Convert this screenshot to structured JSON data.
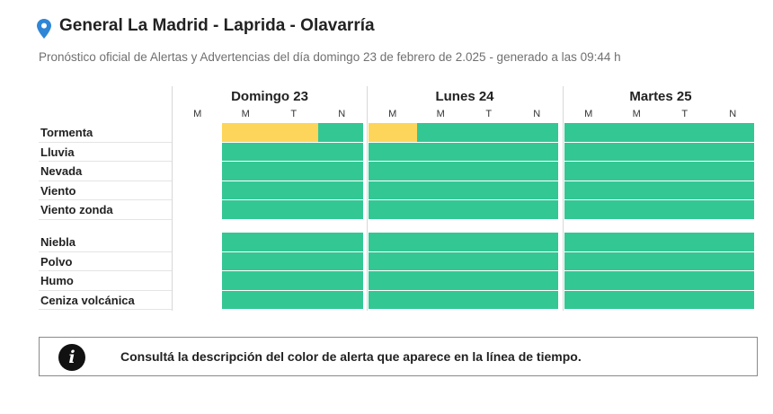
{
  "header": {
    "title": "General La Madrid - Laprida - Olavarría",
    "subtitle": "Pronóstico oficial de Alertas y Advertencias del día domingo 23 de febrero de 2.025 - generado a las 09:44 h",
    "pin_icon": "map-pin-icon"
  },
  "colors": {
    "green": "#33c794",
    "yellow": "#fdd55a"
  },
  "days": [
    {
      "label": "Domingo 23",
      "slots": [
        "M",
        "M",
        "T",
        "N"
      ]
    },
    {
      "label": "Lunes 24",
      "slots": [
        "M",
        "M",
        "T",
        "N"
      ]
    },
    {
      "label": "Martes 25",
      "slots": [
        "M",
        "M",
        "T",
        "N"
      ]
    }
  ],
  "rows_group1": [
    {
      "label": "Tormenta",
      "levels": [
        "none",
        "yellow",
        "yellow",
        "green",
        "yellow",
        "green",
        "green",
        "green",
        "green",
        "green",
        "green",
        "green"
      ]
    },
    {
      "label": "Lluvia",
      "levels": [
        "none",
        "green",
        "green",
        "green",
        "green",
        "green",
        "green",
        "green",
        "green",
        "green",
        "green",
        "green"
      ]
    },
    {
      "label": "Nevada",
      "levels": [
        "none",
        "green",
        "green",
        "green",
        "green",
        "green",
        "green",
        "green",
        "green",
        "green",
        "green",
        "green"
      ]
    },
    {
      "label": "Viento",
      "levels": [
        "none",
        "green",
        "green",
        "green",
        "green",
        "green",
        "green",
        "green",
        "green",
        "green",
        "green",
        "green"
      ]
    },
    {
      "label": "Viento zonda",
      "levels": [
        "none",
        "green",
        "green",
        "green",
        "green",
        "green",
        "green",
        "green",
        "green",
        "green",
        "green",
        "green"
      ]
    }
  ],
  "rows_group2": [
    {
      "label": "Niebla",
      "levels": [
        "none",
        "green",
        "green",
        "green",
        "green",
        "green",
        "green",
        "green",
        "green",
        "green",
        "green",
        "green"
      ]
    },
    {
      "label": "Polvo",
      "levels": [
        "none",
        "green",
        "green",
        "green",
        "green",
        "green",
        "green",
        "green",
        "green",
        "green",
        "green",
        "green"
      ]
    },
    {
      "label": "Humo",
      "levels": [
        "none",
        "green",
        "green",
        "green",
        "green",
        "green",
        "green",
        "green",
        "green",
        "green",
        "green",
        "green"
      ]
    },
    {
      "label": "Ceniza volcánica",
      "levels": [
        "none",
        "green",
        "green",
        "green",
        "green",
        "green",
        "green",
        "green",
        "green",
        "green",
        "green",
        "green"
      ]
    }
  ],
  "notice": {
    "icon": "info-icon",
    "icon_glyph": "i",
    "text": "Consultá la descripción del color de alerta que aparece en la línea de tiempo."
  }
}
